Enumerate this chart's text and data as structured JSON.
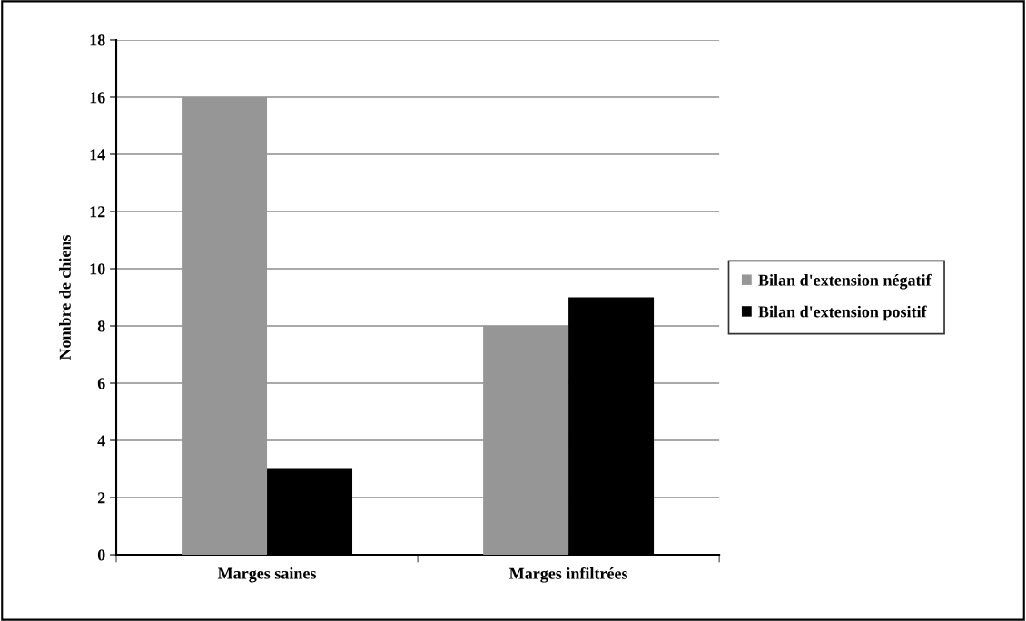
{
  "chart_data": {
    "type": "bar",
    "ylabel": "Nombre de chiens",
    "categories": [
      "Marges saines",
      "Marges infiltrées"
    ],
    "series": [
      {
        "name": "Bilan d'extension négatif",
        "color": "#969696",
        "values": [
          16,
          8
        ]
      },
      {
        "name": "Bilan d'extension positif",
        "color": "#000000",
        "values": [
          3,
          9
        ]
      }
    ],
    "ylim": [
      0,
      18
    ],
    "yticks": [
      0,
      2,
      4,
      6,
      8,
      10,
      12,
      14,
      16,
      18
    ],
    "grid": "y",
    "legend": "right"
  }
}
